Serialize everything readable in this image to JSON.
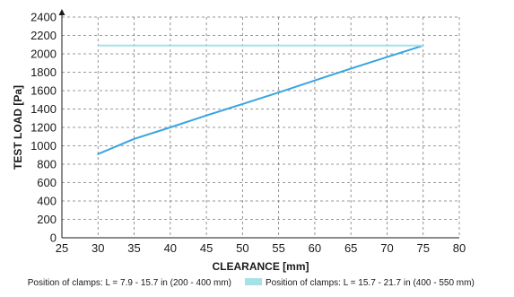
{
  "chart_data": {
    "type": "line",
    "xlabel": "CLEARANCE [mm]",
    "ylabel": "TEST LOAD  [Pa]",
    "xlim": [
      25,
      80
    ],
    "ylim": [
      0,
      2400
    ],
    "xticks": [
      "25",
      "30",
      "35",
      "40",
      "45",
      "50",
      "55",
      "60",
      "65",
      "70",
      "75",
      "80"
    ],
    "yticks": [
      "0",
      "200",
      "400",
      "600",
      "800",
      "1000",
      "1200",
      "1400",
      "1600",
      "1800",
      "2000",
      "2200",
      "2400"
    ],
    "grid": true,
    "legend_position": "bottom",
    "series": [
      {
        "name": "Position of clamps: L = 7.9 - 15.7 in (200 - 400 mm)",
        "color": "#3aa4e0",
        "x": [
          30,
          35,
          40,
          45,
          50,
          55,
          60,
          65,
          70,
          75
        ],
        "y": [
          910,
          1075,
          1200,
          1330,
          1455,
          1580,
          1710,
          1840,
          1965,
          2090
        ]
      },
      {
        "name": "Position of clamps: L = 15.7 - 21.7 in (400 - 550 mm)",
        "color": "#a6e1e8",
        "x": [
          30,
          75
        ],
        "y": [
          2090,
          2090
        ]
      }
    ]
  }
}
